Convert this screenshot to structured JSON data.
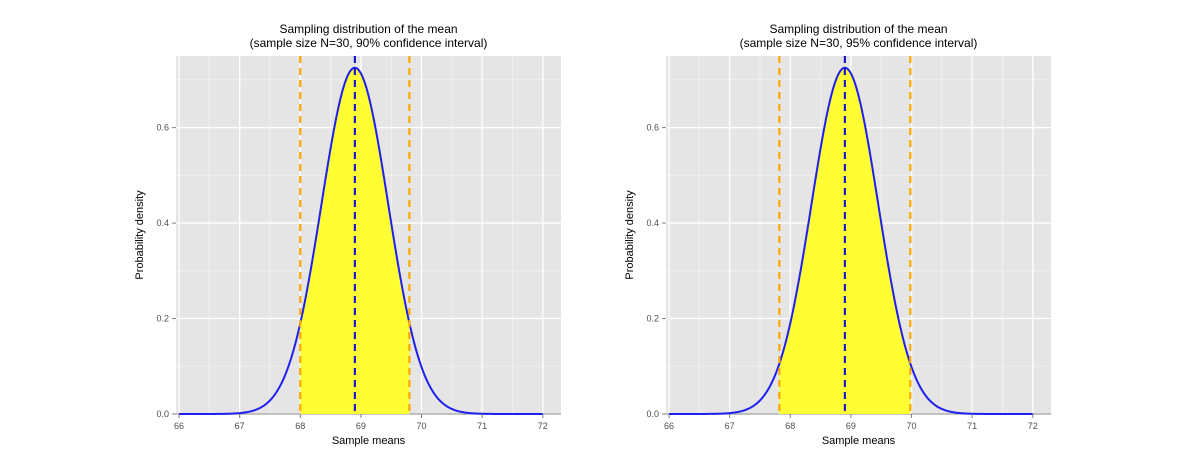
{
  "chart_data": [
    {
      "type": "area",
      "title": "Sampling distribution of the mean",
      "subtitle": "(sample size N=30, 90% confidence interval)",
      "xlabel": "Sample means",
      "ylabel": "Probability density",
      "xlim": [
        65.95,
        72.3
      ],
      "ylim": [
        0,
        0.75
      ],
      "x_ticks": [
        66,
        67,
        68,
        69,
        70,
        71,
        72
      ],
      "y_ticks": [
        0.0,
        0.2,
        0.4,
        0.6
      ],
      "y_tick_labels": [
        "0.0",
        "0.2",
        "0.4",
        "0.6"
      ],
      "grid": true,
      "distribution": {
        "family": "normal",
        "mean": 68.9,
        "sd": 0.55,
        "x_range": [
          66,
          72
        ]
      },
      "mean_line": 68.9,
      "ci_lower": 68.0,
      "ci_upper": 69.8,
      "colors": {
        "curve": "#2020ee",
        "fill": "#ffff33",
        "mean_line": "#1a1acc",
        "ci_lines": "#ffa500",
        "panel": "#e5e5e5",
        "grid": "#ffffff"
      }
    },
    {
      "type": "area",
      "title": "Sampling distribution of the mean",
      "subtitle": "(sample size N=30, 95% confidence interval)",
      "xlabel": "Sample means",
      "ylabel": "Probability density",
      "xlim": [
        65.95,
        72.3
      ],
      "ylim": [
        0,
        0.75
      ],
      "x_ticks": [
        66,
        67,
        68,
        69,
        70,
        71,
        72
      ],
      "y_ticks": [
        0.0,
        0.2,
        0.4,
        0.6
      ],
      "y_tick_labels": [
        "0.0",
        "0.2",
        "0.4",
        "0.6"
      ],
      "grid": true,
      "distribution": {
        "family": "normal",
        "mean": 68.9,
        "sd": 0.55,
        "x_range": [
          66,
          72
        ]
      },
      "mean_line": 68.9,
      "ci_lower": 67.82,
      "ci_upper": 69.98,
      "colors": {
        "curve": "#2020ee",
        "fill": "#ffff33",
        "mean_line": "#1a1acc",
        "ci_lines": "#ffa500",
        "panel": "#e5e5e5",
        "grid": "#ffffff"
      }
    }
  ]
}
